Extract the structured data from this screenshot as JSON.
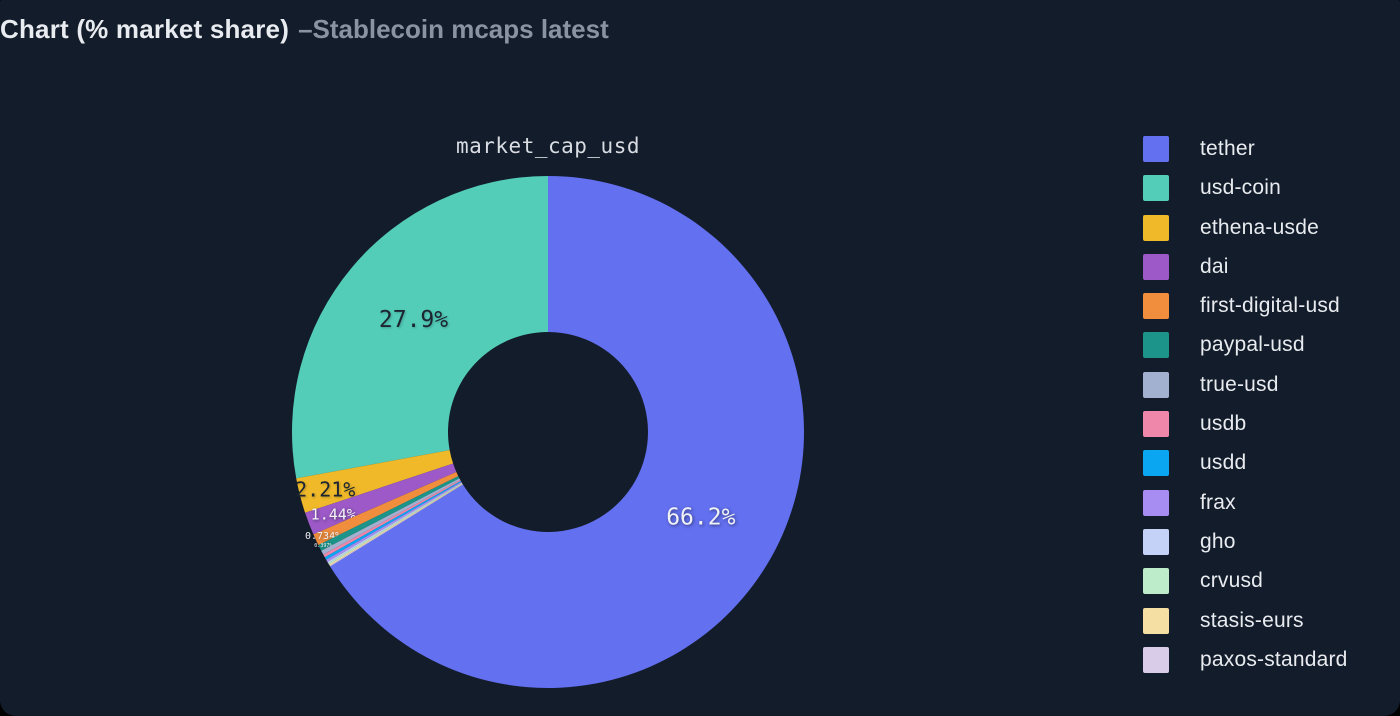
{
  "header": {
    "title": "Chart (% market share)",
    "subtitle": "–Stablecoin mcaps latest"
  },
  "colors": {
    "background": "#131c2a",
    "header_title": "#e8ebef",
    "header_subtitle": "#8b93a2",
    "chart_title_text": "#d9dde3",
    "legend_text": "#e8ebef",
    "label_light": "#f1f2f6",
    "label_dark": "#1c2531"
  },
  "chart_data": {
    "type": "pie",
    "title": "market_cap_usd",
    "hole_ratio": 0.39,
    "outer_radius_px": 256,
    "inner_radius_px": 100,
    "legend_position": "right",
    "start": "largest slice clockwise from 12 o'clock, remaining slices counterclockwise from 12 o'clock in legend order",
    "slices": [
      {
        "name": "tether",
        "value": 66.2,
        "label": "66.2%",
        "color": "#6370f0",
        "label_tone": "light"
      },
      {
        "name": "usd-coin",
        "value": 27.9,
        "label": "27.9%",
        "color": "#53cdb8",
        "label_tone": "dark"
      },
      {
        "name": "ethena-usde",
        "value": 2.21,
        "label": "2.21%",
        "color": "#f0b929",
        "label_tone": "dark"
      },
      {
        "name": "dai",
        "value": 1.44,
        "label": "1.44%",
        "color": "#9c59c7",
        "label_tone": "light"
      },
      {
        "name": "first-digital-usd",
        "value": 0.734,
        "label": "0.734%",
        "color": "#f08e3e",
        "label_tone": "light"
      },
      {
        "name": "paypal-usd",
        "value": 0.397,
        "label": "0.397%",
        "color": "#1d9489",
        "label_tone": "light"
      },
      {
        "name": "true-usd",
        "value": 0.27,
        "label": "",
        "color": "#a2b1cf",
        "label_tone": "dark"
      },
      {
        "name": "usdb",
        "value": 0.19,
        "label": "",
        "color": "#ef87ab",
        "label_tone": "dark"
      },
      {
        "name": "usdd",
        "value": 0.17,
        "label": "",
        "color": "#0ba6f2",
        "label_tone": "light"
      },
      {
        "name": "frax",
        "value": 0.16,
        "label": "",
        "color": "#a78df2",
        "label_tone": "light"
      },
      {
        "name": "gho",
        "value": 0.1,
        "label": "",
        "color": "#c5d2f7",
        "label_tone": "dark"
      },
      {
        "name": "crvusd",
        "value": 0.09,
        "label": "",
        "color": "#bcecca",
        "label_tone": "dark"
      },
      {
        "name": "stasis-eurs",
        "value": 0.08,
        "label": "",
        "color": "#f6dfa3",
        "label_tone": "dark"
      },
      {
        "name": "paxos-standard",
        "value": 0.06,
        "label": "",
        "color": "#d9cce9",
        "label_tone": "dark"
      }
    ]
  }
}
